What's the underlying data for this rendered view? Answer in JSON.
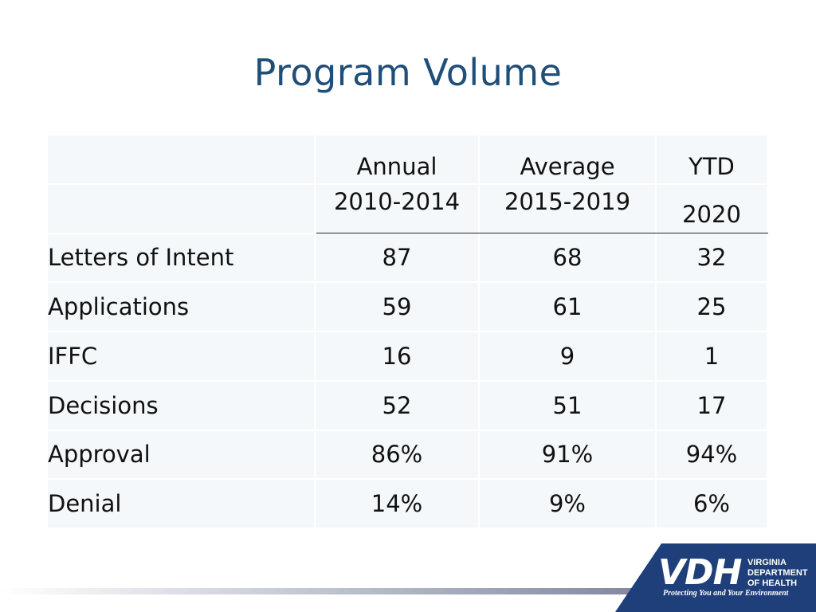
{
  "title": "Program Volume",
  "table": {
    "header_top": [
      "",
      "Annual",
      "Average",
      "YTD"
    ],
    "header_bottom": [
      "",
      "2010-2014",
      "2015-2019",
      "2020"
    ],
    "rows": [
      {
        "label": "Letters of Intent",
        "values": [
          "87",
          "68",
          "32"
        ]
      },
      {
        "label": "Applications",
        "values": [
          "59",
          "61",
          "25"
        ]
      },
      {
        "label": "IFFC",
        "values": [
          "16",
          "9",
          "1"
        ]
      },
      {
        "label": "Decisions",
        "values": [
          "52",
          "51",
          "17"
        ]
      },
      {
        "label": "Approval",
        "values": [
          "86%",
          "91%",
          "94%"
        ]
      },
      {
        "label": "Denial",
        "values": [
          "14%",
          "9%",
          "6%"
        ]
      }
    ]
  },
  "logo": {
    "mark": "VDH",
    "name_lines": [
      "VIRGINIA",
      "DEPARTMENT",
      "OF HEALTH"
    ],
    "tagline": "Protecting You and Your Environment"
  },
  "colors": {
    "title": "#1f4e79",
    "cell_background": "#f4f8fa",
    "logo_background": "#1f3f7a"
  }
}
